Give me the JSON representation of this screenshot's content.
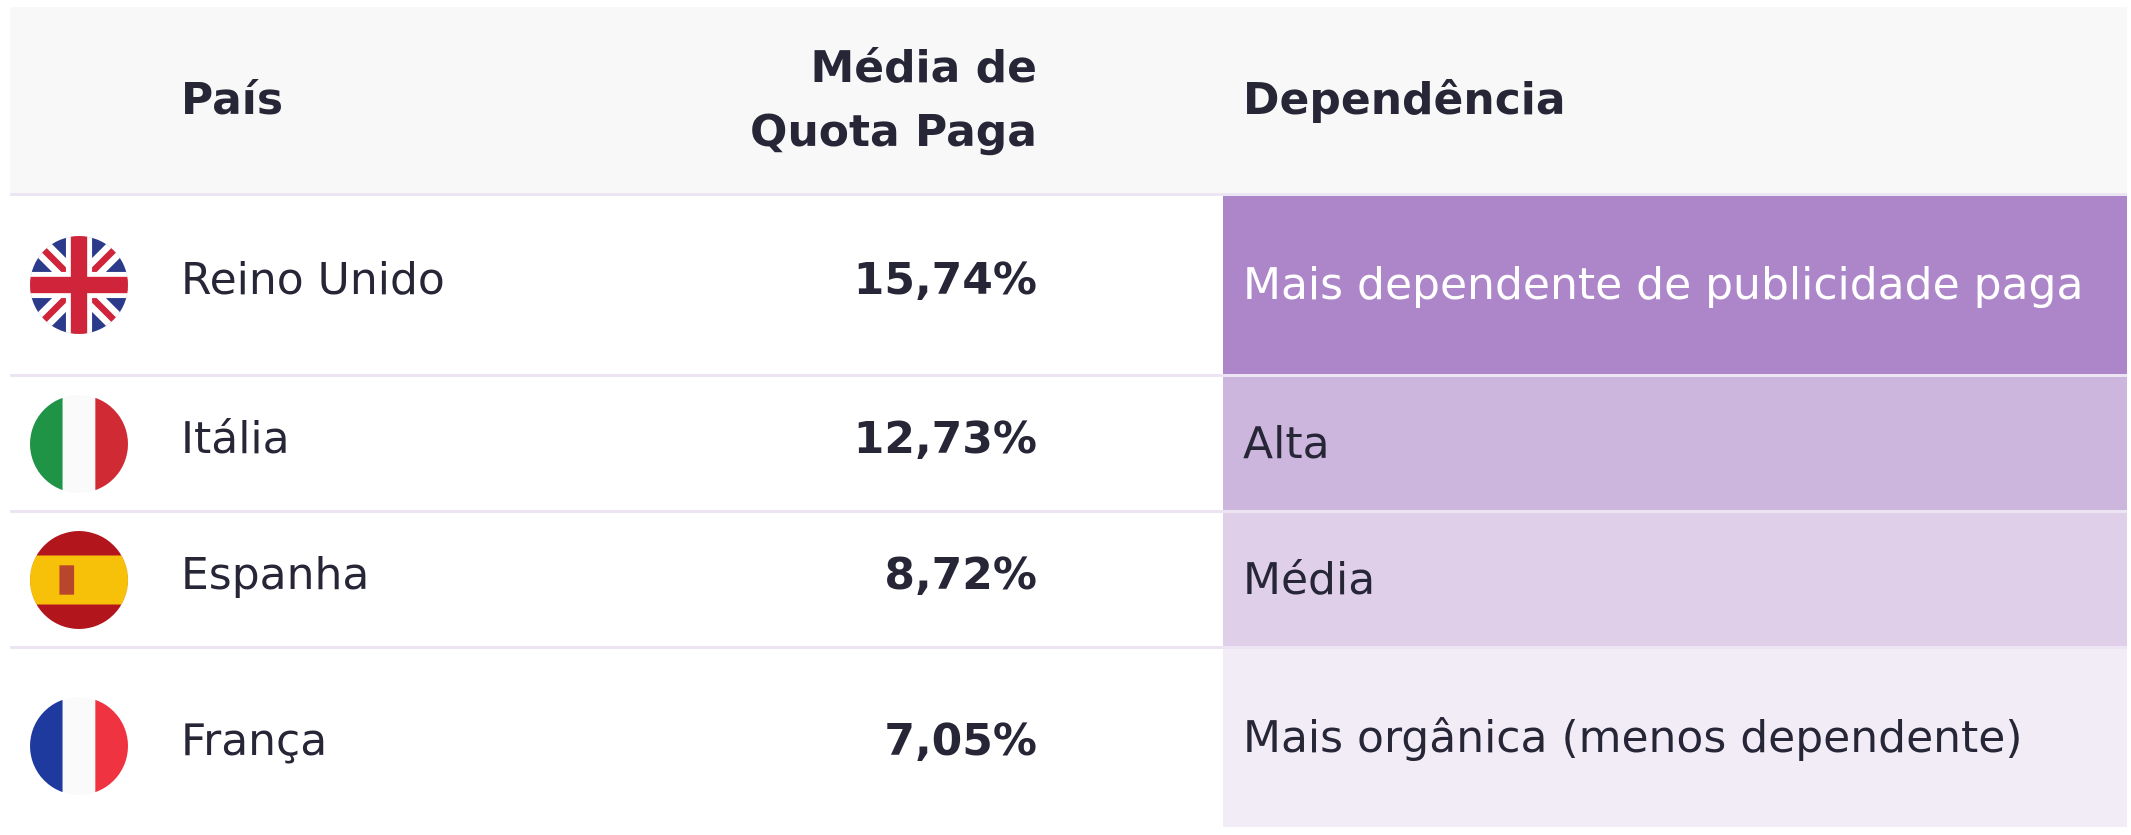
{
  "header": {
    "country": "País",
    "avg_paid_share": "Média de Quota Paga",
    "dependence": "Dependência"
  },
  "rows": [
    {
      "flag": "uk-flag-icon",
      "country": "Reino Unido",
      "value": "15,74%",
      "dependence": "Mais dependente de publicidade paga",
      "dep_color": "#ad86c9",
      "dep_text_color": "#ffffff"
    },
    {
      "flag": "italy-flag-icon",
      "country": "Itália",
      "value": "12,73%",
      "dependence": "Alta",
      "dep_color": "#cdb6dd",
      "dep_text_color": "#262637"
    },
    {
      "flag": "spain-flag-icon",
      "country": "Espanha",
      "value": "8,72%",
      "dependence": "Média",
      "dep_color": "#dfcfe8",
      "dep_text_color": "#262637"
    },
    {
      "flag": "france-flag-icon",
      "country": "França",
      "value": "7,05%",
      "dependence": "Mais orgânica (menos dependente)",
      "dep_color": "#f2ecf7",
      "dep_text_color": "#262637"
    }
  ]
}
